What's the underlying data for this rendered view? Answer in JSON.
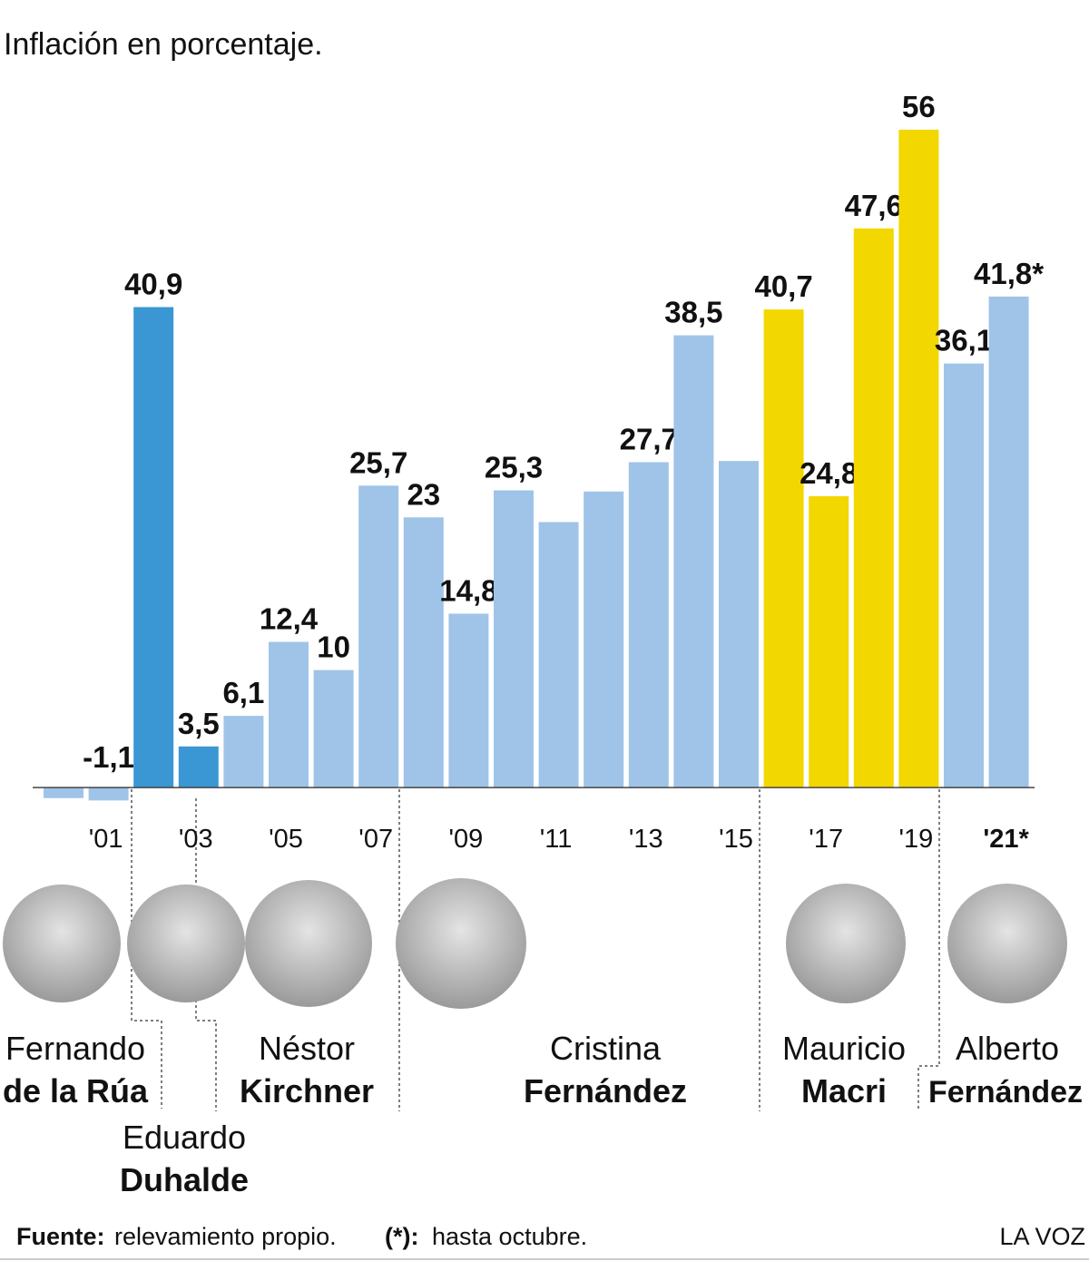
{
  "chart_data": {
    "type": "bar",
    "title": "Inflación en porcentaje.",
    "categories": [
      null,
      "'01",
      null,
      "'03",
      null,
      "'05",
      null,
      "'07",
      null,
      "'09",
      null,
      "'11",
      null,
      "'13",
      null,
      "'15",
      null,
      "'17",
      null,
      "'19",
      null,
      "'21*"
    ],
    "values": [
      -0.9,
      -1.1,
      40.9,
      3.5,
      6.1,
      12.4,
      10,
      25.7,
      23,
      14.8,
      25.3,
      22.6,
      25.2,
      27.7,
      38.5,
      27.8,
      40.7,
      24.8,
      47.6,
      56,
      36.1,
      41.8
    ],
    "value_labels": [
      null,
      "-1,1",
      "40,9",
      "3,5",
      "6,1",
      "12,4",
      "10",
      "25,7",
      "23",
      "14,8",
      "25,3",
      null,
      null,
      "27,7",
      "38,5",
      null,
      "40,7",
      "24,8",
      "47,6",
      "56",
      "36,1",
      "41,8*"
    ],
    "colors": [
      "#9fc4e8",
      "#9fc4e8",
      "#3a97d4",
      "#3a97d4",
      "#9fc4e8",
      "#9fc4e8",
      "#9fc4e8",
      "#9fc4e8",
      "#9fc4e8",
      "#9fc4e8",
      "#9fc4e8",
      "#9fc4e8",
      "#9fc4e8",
      "#9fc4e8",
      "#9fc4e8",
      "#9fc4e8",
      "#f3d700",
      "#f3d700",
      "#f3d700",
      "#f3d700",
      "#9fc4e8",
      "#9fc4e8"
    ],
    "ylim": [
      -2,
      56
    ]
  },
  "presidents": [
    {
      "first": "Fernando",
      "last": "de la Rúa"
    },
    {
      "first": "Eduardo",
      "last": "Duhalde"
    },
    {
      "first": "Néstor",
      "last": "Kirchner"
    },
    {
      "first": "Cristina",
      "last": "Fernández"
    },
    {
      "first": "Mauricio",
      "last": "Macri"
    },
    {
      "first": "Alberto",
      "last": "Fernández"
    }
  ],
  "footer": {
    "source_label": "Fuente:",
    "source": "relevamiento propio.",
    "note_label": "(*):",
    "note": "hasta octubre.",
    "brand": "LA VOZ"
  }
}
